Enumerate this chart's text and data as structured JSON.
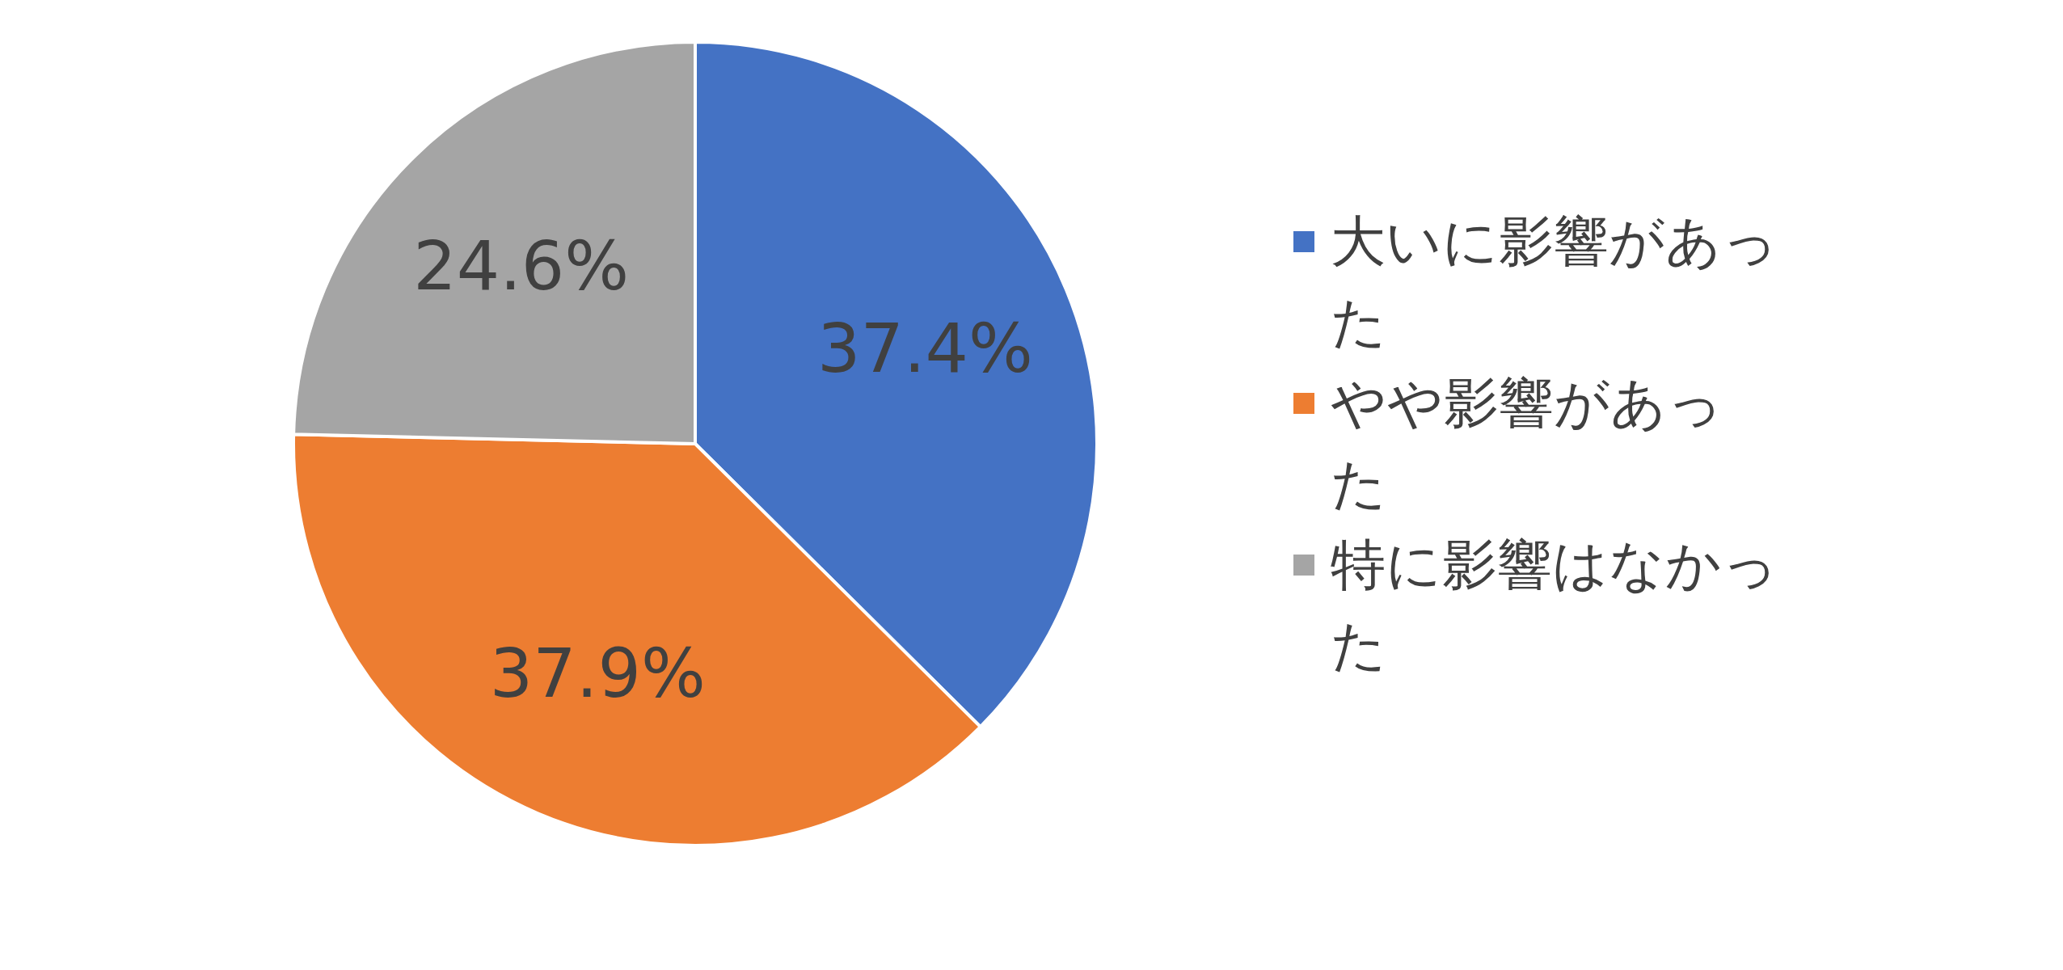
{
  "chart_data": {
    "type": "pie",
    "categories": [
      "大いに影響があった",
      "やや影響があった",
      "特に影響はなかった"
    ],
    "values": [
      37.4,
      37.9,
      24.6
    ],
    "colors": [
      "#4472c4",
      "#ed7d31",
      "#a5a5a5"
    ],
    "value_labels": [
      "37.4%",
      "37.9%",
      "24.6%"
    ],
    "legend": "right"
  }
}
